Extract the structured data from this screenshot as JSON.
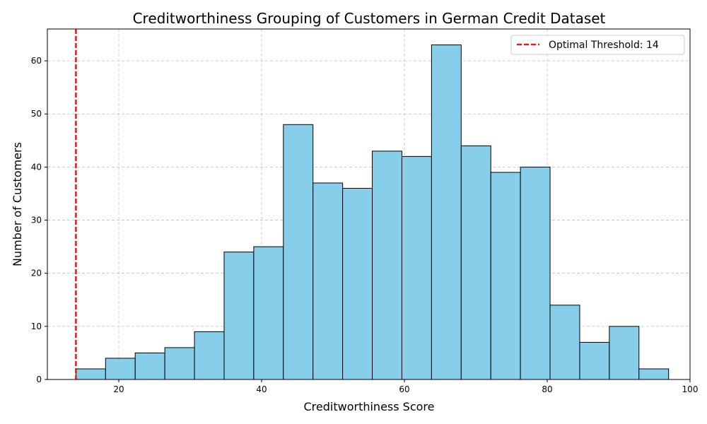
{
  "chart_data": {
    "type": "bar",
    "title": "Creditworthiness Grouping of Customers in German Credit Dataset",
    "xlabel": "Creditworthiness Score",
    "ylabel": "Number of Customers",
    "xlim": [
      10,
      100
    ],
    "ylim": [
      0,
      66
    ],
    "xticks": [
      20,
      40,
      60,
      80,
      100
    ],
    "yticks": [
      0,
      10,
      20,
      30,
      40,
      50,
      60
    ],
    "grid": true,
    "bar_color": "#87ceeb",
    "edge_color": "#000000",
    "bins": [
      {
        "x0": 14.0,
        "x1": 18.15,
        "count": 2
      },
      {
        "x0": 18.15,
        "x1": 22.3,
        "count": 4
      },
      {
        "x0": 22.3,
        "x1": 26.45,
        "count": 5
      },
      {
        "x0": 26.45,
        "x1": 30.6,
        "count": 6
      },
      {
        "x0": 30.6,
        "x1": 34.75,
        "count": 9
      },
      {
        "x0": 34.75,
        "x1": 38.9,
        "count": 24
      },
      {
        "x0": 38.9,
        "x1": 43.05,
        "count": 25
      },
      {
        "x0": 43.05,
        "x1": 47.2,
        "count": 48
      },
      {
        "x0": 47.2,
        "x1": 51.35,
        "count": 37
      },
      {
        "x0": 51.35,
        "x1": 55.5,
        "count": 36
      },
      {
        "x0": 55.5,
        "x1": 59.65,
        "count": 43
      },
      {
        "x0": 59.65,
        "x1": 63.8,
        "count": 42
      },
      {
        "x0": 63.8,
        "x1": 67.95,
        "count": 63
      },
      {
        "x0": 67.95,
        "x1": 72.1,
        "count": 44
      },
      {
        "x0": 72.1,
        "x1": 76.25,
        "count": 39
      },
      {
        "x0": 76.25,
        "x1": 80.4,
        "count": 40
      },
      {
        "x0": 80.4,
        "x1": 84.55,
        "count": 14
      },
      {
        "x0": 84.55,
        "x1": 88.7,
        "count": 7
      },
      {
        "x0": 88.7,
        "x1": 92.85,
        "count": 10
      },
      {
        "x0": 92.85,
        "x1": 97.0,
        "count": 2
      }
    ],
    "threshold": {
      "value": 14,
      "label": "Optimal Threshold: 14",
      "color": "#e31a1c",
      "style": "dashed"
    },
    "legend_position": "top-right"
  }
}
